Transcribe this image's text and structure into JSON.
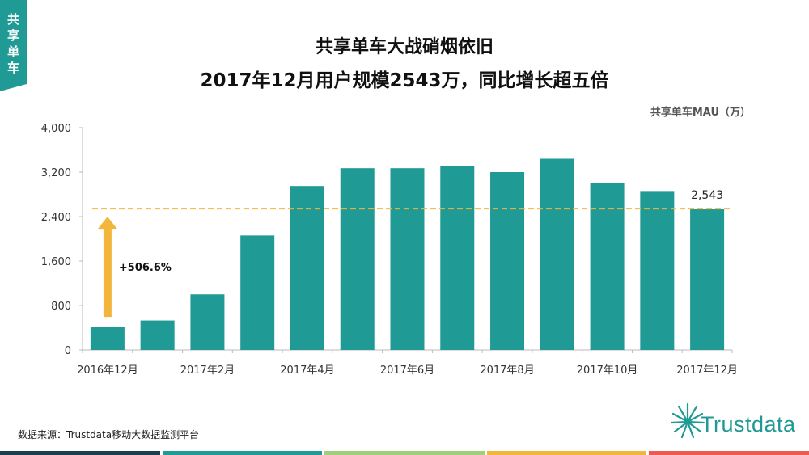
{
  "side_tag": [
    "共",
    "享",
    "单",
    "车"
  ],
  "title_line1": "共享单车大战硝烟依旧",
  "title_line2": "2017年12月用户规模2543万，同比增长超五倍",
  "unit_label": "共享单车MAU（万）",
  "source": "数据来源：Trustdata移动大数据监测平台",
  "logo_text": "Trustdata",
  "colors": {
    "bar": "#1f9a94",
    "accent": "#f3b63c",
    "bottom_bar": [
      "#1a3f4c",
      "#1f9a94",
      "#9fcf7a",
      "#f3b63c",
      "#ec5b4f"
    ]
  },
  "chart_data": {
    "type": "bar",
    "x_labels": [
      "2016年12月",
      "",
      "2017年2月",
      "",
      "2017年4月",
      "",
      "2017年6月",
      "",
      "2017年8月",
      "",
      "2017年10月",
      "",
      "2017年12月"
    ],
    "values": [
      420,
      530,
      1000,
      2060,
      2950,
      3270,
      3270,
      3310,
      3200,
      3440,
      3010,
      2860,
      2543
    ],
    "y_ticks": [
      "0",
      "800",
      "1,600",
      "2,400",
      "3,200",
      "4,000"
    ],
    "ylim": [
      0,
      4000
    ],
    "reference_line": 2543,
    "data_label": "2,543",
    "growth_annotation": "+506.6%",
    "growth_arrow_from": 420
  }
}
